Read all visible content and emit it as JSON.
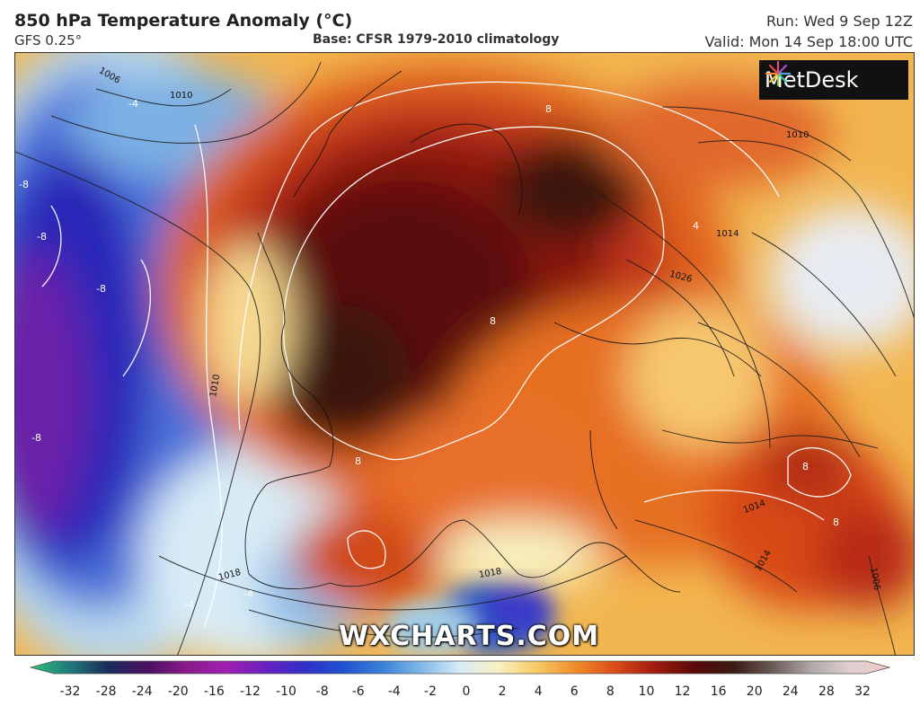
{
  "header": {
    "title": "850 hPa Temperature Anomaly (°C)",
    "model": "GFS 0.25°",
    "base": "Base: CFSR 1979-2010 climatology",
    "run": "Run: Wed 9 Sep 12Z",
    "valid": "Valid: Mon 14 Sep 18:00 UTC"
  },
  "logo": {
    "text": "MetDesk",
    "icon": "metdesk-starburst-icon"
  },
  "watermark": "WXCHARTS.COM",
  "contour_labels": {
    "black": [
      "1006",
      "1010",
      "1010",
      "1010",
      "1018",
      "1018",
      "1026",
      "1014",
      "1014",
      "1014",
      "1006"
    ],
    "white": [
      "-4",
      "-8",
      "-8",
      "-8",
      "-8",
      "8",
      "8",
      "8",
      "8",
      "8",
      "4",
      "-4",
      "-4"
    ]
  },
  "colorbar": {
    "ticks": [
      "-32",
      "-28",
      "-24",
      "-20",
      "-16",
      "-12",
      "-10",
      "-8",
      "-6",
      "-4",
      "-2",
      "0",
      "2",
      "4",
      "6",
      "8",
      "10",
      "12",
      "16",
      "20",
      "24",
      "28",
      "32"
    ],
    "colors": [
      "#2ec27a",
      "#1f7a7a",
      "#1a2a5a",
      "#4a1060",
      "#8a1a8a",
      "#a020b0",
      "#6a20c0",
      "#3030c8",
      "#2050d0",
      "#3a80d8",
      "#80b8e8",
      "#d8ecf6",
      "#f8f0c0",
      "#f6c860",
      "#f0882a",
      "#d84a18",
      "#a01a10",
      "#5a0a08",
      "#3a1a14",
      "#6a5a58",
      "#b0a8a8",
      "#e0d0d0",
      "#f0c8c8"
    ]
  }
}
